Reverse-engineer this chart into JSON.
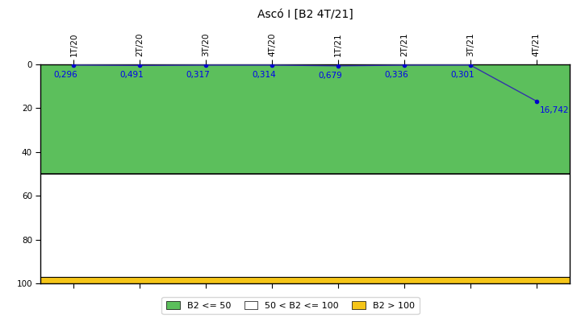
{
  "title": "Ascó I [B2 4T/21]",
  "x_labels": [
    "1T/20",
    "2T/20",
    "3T/20",
    "4T/20",
    "1T/21",
    "2T/21",
    "3T/21",
    "4T/21"
  ],
  "y_values": [
    0.296,
    0.491,
    0.317,
    0.314,
    0.679,
    0.336,
    0.301,
    16.742
  ],
  "value_labels": [
    "0,296",
    "0,491",
    "0,317",
    "0,314",
    "0,679",
    "0,336",
    "0,301",
    "16,742"
  ],
  "ylim": [
    0,
    100
  ],
  "yticks": [
    0,
    20,
    40,
    60,
    80,
    100
  ],
  "green_region": [
    0,
    50
  ],
  "white_region": [
    50,
    97
  ],
  "yellow_region": [
    97,
    100
  ],
  "green_color": "#5CBF5C",
  "yellow_color": "#F5C518",
  "white_color": "#FFFFFF",
  "line_color": "#3333AA",
  "marker_color": "#0000CC",
  "text_color": "#0000EE",
  "legend_labels": [
    "B2 <= 50",
    "50 < B2 <= 100",
    "B2 > 100"
  ],
  "background_color": "#FFFFFF",
  "title_fontsize": 10,
  "tick_fontsize": 7.5,
  "label_fontsize": 7.5
}
